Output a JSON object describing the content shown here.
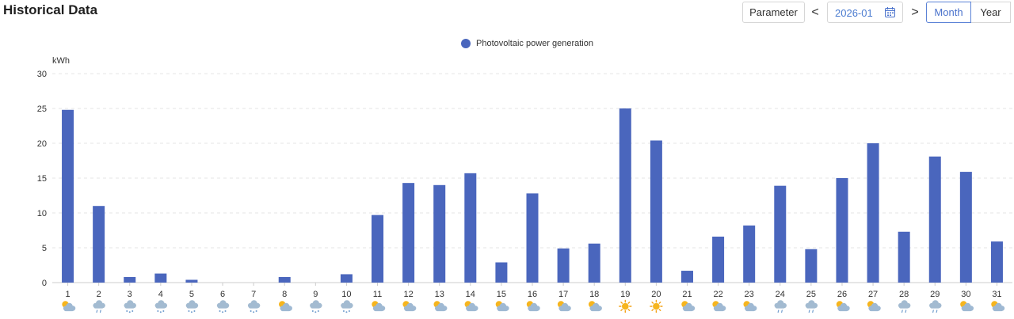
{
  "header": {
    "title": "Historical Data"
  },
  "toolbar": {
    "parameter_label": "Parameter",
    "prev_label": "<",
    "date_value": "2026-01",
    "next_label": ">",
    "month_label": "Month",
    "year_label": "Year"
  },
  "colors": {
    "bar": "#4a66bd",
    "accent": "#4a72cc",
    "grid": "#e6e6e6"
  },
  "chart_data": {
    "type": "bar",
    "title": "",
    "legend": [
      "Photovoltaic power generation"
    ],
    "ylabel": "kWh",
    "xlabel": "",
    "ylim": [
      0,
      30
    ],
    "yticks": [
      0,
      5,
      10,
      15,
      20,
      25,
      30
    ],
    "categories": [
      "1",
      "2",
      "3",
      "4",
      "5",
      "6",
      "7",
      "8",
      "9",
      "10",
      "11",
      "12",
      "13",
      "14",
      "15",
      "16",
      "17",
      "18",
      "19",
      "20",
      "21",
      "22",
      "23",
      "24",
      "25",
      "26",
      "27",
      "28",
      "29",
      "30",
      "31"
    ],
    "series": [
      {
        "name": "Photovoltaic power generation",
        "values": [
          24.8,
          11.0,
          0.8,
          1.3,
          0.4,
          0,
          0,
          0.8,
          0,
          1.2,
          9.7,
          14.3,
          14.0,
          15.7,
          2.9,
          12.8,
          4.9,
          5.6,
          25.0,
          20.4,
          1.7,
          6.6,
          8.2,
          13.9,
          4.8,
          15.0,
          20.0,
          7.3,
          18.1,
          15.9,
          5.9
        ]
      }
    ],
    "weather_icons": [
      "partly-cloudy",
      "rain",
      "snow",
      "snow",
      "snow",
      "snow",
      "snow",
      "partly-cloudy",
      "snow",
      "snow",
      "partly-cloudy",
      "partly-cloudy",
      "partly-cloudy",
      "partly-cloudy",
      "partly-cloudy",
      "partly-cloudy",
      "partly-cloudy",
      "partly-cloudy",
      "sunny",
      "sunny",
      "partly-cloudy",
      "partly-cloudy",
      "partly-cloudy",
      "rain",
      "rain",
      "partly-cloudy",
      "partly-cloudy",
      "rain",
      "rain",
      "partly-cloudy",
      "partly-cloudy"
    ]
  }
}
